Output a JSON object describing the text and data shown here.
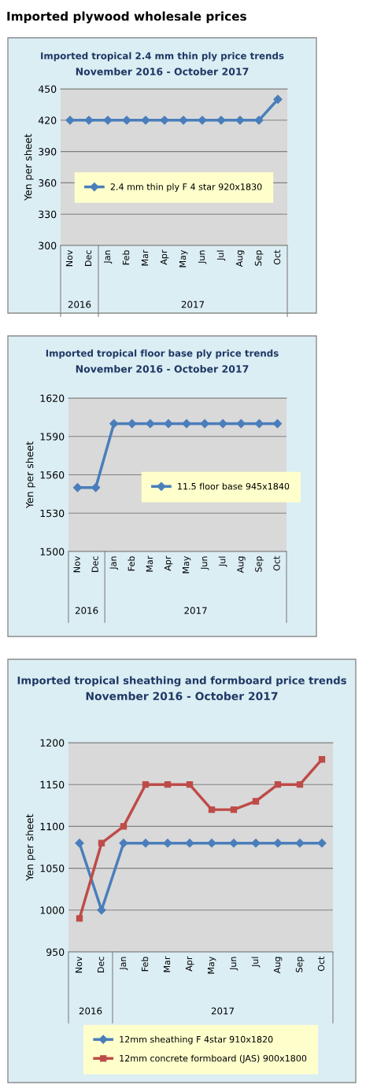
{
  "chart_data": [
    {
      "type": "other",
      "title": "Imported plywood wholesale prices"
    },
    {
      "type": "line",
      "title": "Imported tropical 2.4 mm thin ply price trends",
      "subtitle": "November 2016 - October 2017",
      "ylabel": "Yen per sheet",
      "categories": [
        "Nov",
        "Dec",
        "Jan",
        "Feb",
        "Mar",
        "Apr",
        "May",
        "Jun",
        "Jul",
        "Aug",
        "Sep",
        "Oct"
      ],
      "annotations": [
        "2016",
        "2017"
      ],
      "series": [
        {
          "name": "2.4 mm thin ply F 4 star 920x1830",
          "color": "#4a7ebb",
          "marker": "diamond",
          "values": [
            420,
            420,
            420,
            420,
            420,
            420,
            420,
            420,
            420,
            420,
            420,
            440
          ]
        }
      ],
      "ylim": [
        300,
        450
      ],
      "yticks": [
        300,
        330,
        360,
        390,
        420,
        450
      ],
      "grid": "y",
      "legend": "center",
      "line_style": "solid"
    },
    {
      "type": "line",
      "title": "Imported tropical floor base ply price trends",
      "subtitle": "November 2016 - October 2017",
      "ylabel": "Yen per sheet",
      "categories": [
        "Nov",
        "Dec",
        "Jan",
        "Feb",
        "Mar",
        "Apr",
        "May",
        "Jun",
        "Jul",
        "Aug",
        "Sep",
        "Oct"
      ],
      "annotations": [
        "2016",
        "2017"
      ],
      "series": [
        {
          "name": "11.5 floor base 945x1840",
          "color": "#4a7ebb",
          "marker": "diamond",
          "values": [
            1550,
            1550,
            1600,
            1600,
            1600,
            1600,
            1600,
            1600,
            1600,
            1600,
            1600,
            1600
          ]
        }
      ],
      "ylim": [
        1500,
        1620
      ],
      "yticks": [
        1500,
        1530,
        1560,
        1590,
        1620
      ],
      "grid": "y",
      "legend": "center right",
      "line_style": "solid"
    },
    {
      "type": "line",
      "title": "Imported tropical sheathing and formboard price trends",
      "subtitle": "November 2016 - October 2017",
      "ylabel": "Yen per sheet",
      "categories": [
        "Nov",
        "Dec",
        "Jan",
        "Feb",
        "Mar",
        "Apr",
        "May",
        "Jun",
        "Jul",
        "Aug",
        "Sep",
        "Oct"
      ],
      "annotations": [
        "2016",
        "2017"
      ],
      "series": [
        {
          "name": "12mm sheathing F 4star 910x1820",
          "color": "#4a7ebb",
          "marker": "diamond",
          "values": [
            1080,
            1000,
            1080,
            1080,
            1080,
            1080,
            1080,
            1080,
            1080,
            1080,
            1080,
            1080
          ]
        },
        {
          "name": "12mm concrete formboard (JAS) 900x1800",
          "color": "#be4b48",
          "marker": "square",
          "values": [
            990,
            1080,
            1100,
            1150,
            1150,
            1150,
            1120,
            1120,
            1130,
            1150,
            1150,
            1180
          ]
        }
      ],
      "ylim": [
        950,
        1200
      ],
      "yticks": [
        950,
        1000,
        1050,
        1100,
        1150,
        1200
      ],
      "grid": "y",
      "legend": "bottom",
      "line_style": "solid"
    }
  ]
}
